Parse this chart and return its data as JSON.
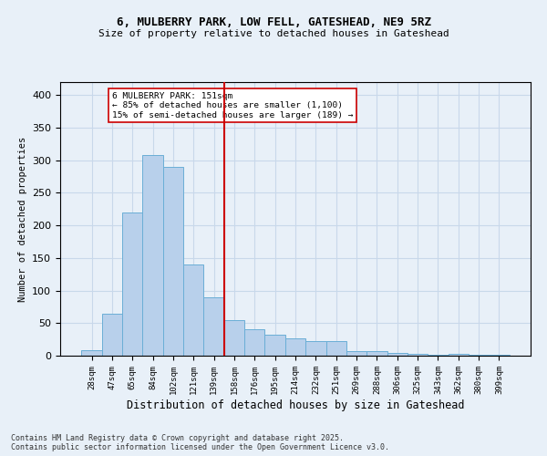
{
  "title1": "6, MULBERRY PARK, LOW FELL, GATESHEAD, NE9 5RZ",
  "title2": "Size of property relative to detached houses in Gateshead",
  "xlabel": "Distribution of detached houses by size in Gateshead",
  "ylabel": "Number of detached properties",
  "footer1": "Contains HM Land Registry data © Crown copyright and database right 2025.",
  "footer2": "Contains public sector information licensed under the Open Government Licence v3.0.",
  "bar_labels": [
    "28sqm",
    "47sqm",
    "65sqm",
    "84sqm",
    "102sqm",
    "121sqm",
    "139sqm",
    "158sqm",
    "176sqm",
    "195sqm",
    "214sqm",
    "232sqm",
    "251sqm",
    "269sqm",
    "288sqm",
    "306sqm",
    "325sqm",
    "343sqm",
    "362sqm",
    "380sqm",
    "399sqm"
  ],
  "bar_values": [
    8,
    65,
    220,
    308,
    290,
    140,
    90,
    55,
    40,
    32,
    27,
    22,
    22,
    7,
    7,
    4,
    3,
    2,
    3,
    2,
    2
  ],
  "bar_color": "#b8d0eb",
  "bar_edge_color": "#6aaed6",
  "vline_x": 7.0,
  "vline_color": "#cc0000",
  "annotation_text": "6 MULBERRY PARK: 151sqm\n← 85% of detached houses are smaller (1,100)\n15% of semi-detached houses are larger (189) →",
  "annotation_box_color": "#ffffff",
  "annotation_box_edge": "#cc0000",
  "ylim": [
    0,
    420
  ],
  "yticks": [
    0,
    50,
    100,
    150,
    200,
    250,
    300,
    350,
    400
  ],
  "grid_color": "#c8d8ea",
  "bg_color": "#e8f0f8"
}
